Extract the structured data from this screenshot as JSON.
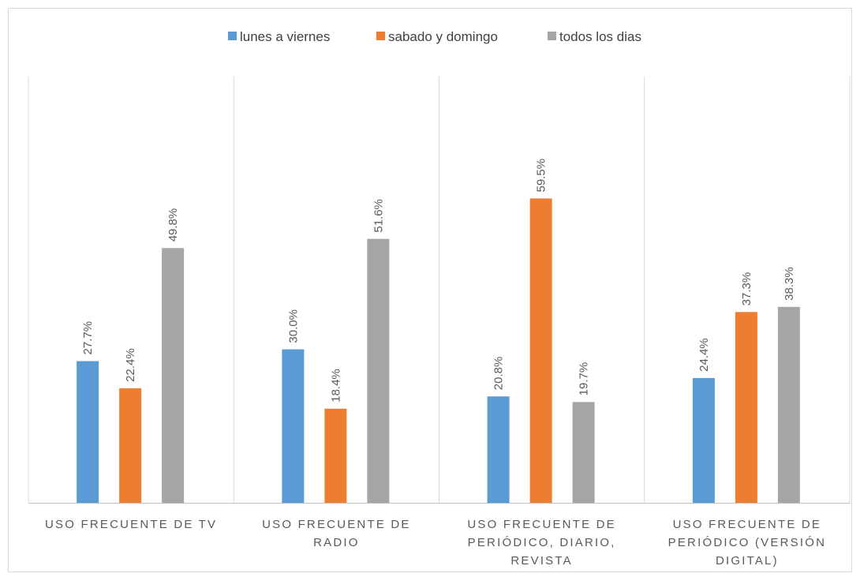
{
  "chart_data": {
    "type": "bar",
    "categories": [
      [
        "USO FRECUENTE DE TV"
      ],
      [
        "USO FRECUENTE DE",
        "RADIO"
      ],
      [
        "USO FRECUENTE DE",
        "PERIÓDICO, DIARIO,",
        "REVISTA"
      ],
      [
        "USO FRECUENTE DE",
        "PERIÓDICO (VERSIÓN",
        "DIGITAL)"
      ]
    ],
    "series": [
      {
        "name": "lunes a viernes",
        "color": "#5b9bd5",
        "values": [
          27.7,
          30.0,
          20.8,
          24.4
        ],
        "labels": [
          "27.7%",
          "30.0%",
          "20.8%",
          "24.4%"
        ]
      },
      {
        "name": "sabado y domingo",
        "color": "#ed7d31",
        "values": [
          22.4,
          18.4,
          59.5,
          37.3
        ],
        "labels": [
          "22.4%",
          "18.4%",
          "59.5%",
          "37.3%"
        ]
      },
      {
        "name": "todos los dias",
        "color": "#a5a5a5",
        "values": [
          49.8,
          51.6,
          19.7,
          38.3
        ],
        "labels": [
          "49.8%",
          "51.6%",
          "19.7%",
          "38.3%"
        ]
      }
    ],
    "ylim": [
      0,
      70
    ],
    "legend_position": "top-center",
    "grid": false,
    "category_separators": true,
    "data_labels": "rotated-vertical",
    "axis_color": "#bfbfbf"
  }
}
